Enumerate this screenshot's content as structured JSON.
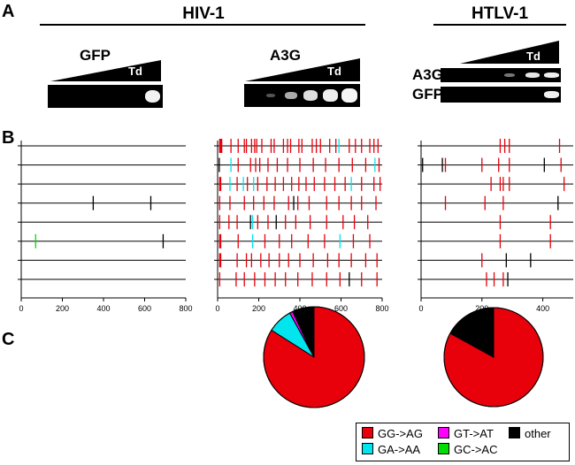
{
  "panels": {
    "a": "A",
    "b": "B",
    "c": "C"
  },
  "groups": {
    "hiv": "HIV-1",
    "htlv": "HTLV-1"
  },
  "gels": {
    "gfp_title": "GFP",
    "a3g_title": "A3G",
    "td": "Td",
    "htlv_a3g_row": "A3G",
    "htlv_gfp_row": "GFP"
  },
  "colors": {
    "gg_ag": "#e8000b",
    "ga_aa": "#00e5ee",
    "gt_at": "#ff00ff",
    "gc_ac": "#00dd00",
    "other": "#000000"
  },
  "chart_data": [
    {
      "type": "mutation-map",
      "name": "HIV-1 GFP",
      "xlim": [
        0,
        800
      ],
      "xticks": [
        "0",
        "200",
        "400",
        "600",
        "800"
      ],
      "rows": [
        [],
        [],
        [],
        [
          {
            "pos": 350,
            "type": "other"
          },
          {
            "pos": 630,
            "type": "other"
          }
        ],
        [],
        [
          {
            "pos": 70,
            "type": "gc_ac"
          },
          {
            "pos": 690,
            "type": "other"
          }
        ],
        [],
        []
      ]
    },
    {
      "type": "mutation-map",
      "name": "HIV-1 A3G",
      "xlim": [
        0,
        800
      ],
      "xticks": [
        "0",
        "200",
        "400",
        "600",
        "800"
      ],
      "rows": [
        [
          {
            "pos": 10,
            "type": "gg_ag"
          },
          {
            "pos": 15,
            "type": "gg_ag"
          },
          {
            "pos": 20,
            "type": "gg_ag"
          },
          {
            "pos": 65,
            "type": "gg_ag"
          },
          {
            "pos": 100,
            "type": "gg_ag"
          },
          {
            "pos": 130,
            "type": "gg_ag"
          },
          {
            "pos": 140,
            "type": "gg_ag"
          },
          {
            "pos": 165,
            "type": "gg_ag"
          },
          {
            "pos": 180,
            "type": "gg_ag"
          },
          {
            "pos": 190,
            "type": "gg_ag"
          },
          {
            "pos": 215,
            "type": "gg_ag"
          },
          {
            "pos": 260,
            "type": "gg_ag"
          },
          {
            "pos": 275,
            "type": "gg_ag"
          },
          {
            "pos": 320,
            "type": "gg_ag"
          },
          {
            "pos": 340,
            "type": "gg_ag"
          },
          {
            "pos": 355,
            "type": "gg_ag"
          },
          {
            "pos": 395,
            "type": "gg_ag"
          },
          {
            "pos": 410,
            "type": "gg_ag"
          },
          {
            "pos": 460,
            "type": "gg_ag"
          },
          {
            "pos": 480,
            "type": "gg_ag"
          },
          {
            "pos": 500,
            "type": "gg_ag"
          },
          {
            "pos": 545,
            "type": "gg_ag"
          },
          {
            "pos": 575,
            "type": "gg_ag"
          },
          {
            "pos": 590,
            "type": "ga_aa"
          },
          {
            "pos": 640,
            "type": "gg_ag"
          },
          {
            "pos": 670,
            "type": "gg_ag"
          },
          {
            "pos": 700,
            "type": "gg_ag"
          },
          {
            "pos": 740,
            "type": "gg_ag"
          },
          {
            "pos": 760,
            "type": "gg_ag"
          },
          {
            "pos": 780,
            "type": "gg_ag"
          }
        ],
        [
          {
            "pos": 8,
            "type": "other"
          },
          {
            "pos": 65,
            "type": "ga_aa"
          },
          {
            "pos": 100,
            "type": "gg_ag"
          },
          {
            "pos": 160,
            "type": "gg_ag"
          },
          {
            "pos": 185,
            "type": "gg_ag"
          },
          {
            "pos": 205,
            "type": "gg_ag"
          },
          {
            "pos": 245,
            "type": "gg_ag"
          },
          {
            "pos": 290,
            "type": "gg_ag"
          },
          {
            "pos": 340,
            "type": "gg_ag"
          },
          {
            "pos": 400,
            "type": "gg_ag"
          },
          {
            "pos": 465,
            "type": "gg_ag"
          },
          {
            "pos": 525,
            "type": "gg_ag"
          },
          {
            "pos": 590,
            "type": "gg_ag"
          },
          {
            "pos": 655,
            "type": "gg_ag"
          },
          {
            "pos": 720,
            "type": "gg_ag"
          },
          {
            "pos": 765,
            "type": "ga_aa"
          },
          {
            "pos": 785,
            "type": "gg_ag"
          }
        ],
        [
          {
            "pos": 10,
            "type": "gg_ag"
          },
          {
            "pos": 15,
            "type": "gg_ag"
          },
          {
            "pos": 60,
            "type": "ga_aa"
          },
          {
            "pos": 95,
            "type": "gg_ag"
          },
          {
            "pos": 125,
            "type": "ga_aa"
          },
          {
            "pos": 145,
            "type": "gg_ag"
          },
          {
            "pos": 175,
            "type": "ga_aa"
          },
          {
            "pos": 195,
            "type": "gg_ag"
          },
          {
            "pos": 240,
            "type": "gg_ag"
          },
          {
            "pos": 280,
            "type": "gg_ag"
          },
          {
            "pos": 320,
            "type": "gg_ag"
          },
          {
            "pos": 360,
            "type": "gg_ag"
          },
          {
            "pos": 395,
            "type": "gg_ag"
          },
          {
            "pos": 430,
            "type": "gg_ag"
          },
          {
            "pos": 470,
            "type": "gg_ag"
          },
          {
            "pos": 520,
            "type": "gg_ag"
          },
          {
            "pos": 570,
            "type": "gg_ag"
          },
          {
            "pos": 620,
            "type": "gg_ag"
          },
          {
            "pos": 650,
            "type": "ga_aa"
          },
          {
            "pos": 700,
            "type": "gg_ag"
          },
          {
            "pos": 760,
            "type": "gg_ag"
          },
          {
            "pos": 790,
            "type": "gg_ag"
          }
        ],
        [
          {
            "pos": 10,
            "type": "gg_ag"
          },
          {
            "pos": 60,
            "type": "gg_ag"
          },
          {
            "pos": 130,
            "type": "gg_ag"
          },
          {
            "pos": 175,
            "type": "gg_ag"
          },
          {
            "pos": 225,
            "type": "gg_ag"
          },
          {
            "pos": 275,
            "type": "gg_ag"
          },
          {
            "pos": 345,
            "type": "gg_ag"
          },
          {
            "pos": 370,
            "type": "other"
          },
          {
            "pos": 390,
            "type": "gg_ag"
          },
          {
            "pos": 445,
            "type": "gg_ag"
          },
          {
            "pos": 530,
            "type": "gg_ag"
          },
          {
            "pos": 590,
            "type": "gg_ag"
          },
          {
            "pos": 650,
            "type": "gg_ag"
          },
          {
            "pos": 700,
            "type": "gg_ag"
          },
          {
            "pos": 770,
            "type": "gg_ag"
          }
        ],
        [
          {
            "pos": 10,
            "type": "gg_ag"
          },
          {
            "pos": 55,
            "type": "gg_ag"
          },
          {
            "pos": 95,
            "type": "gg_ag"
          },
          {
            "pos": 160,
            "type": "other"
          },
          {
            "pos": 170,
            "type": "ga_aa"
          },
          {
            "pos": 195,
            "type": "gg_ag"
          },
          {
            "pos": 245,
            "type": "gg_ag"
          },
          {
            "pos": 285,
            "type": "other"
          },
          {
            "pos": 330,
            "type": "gg_ag"
          },
          {
            "pos": 380,
            "type": "gg_ag"
          },
          {
            "pos": 450,
            "type": "gg_ag"
          },
          {
            "pos": 530,
            "type": "gg_ag"
          },
          {
            "pos": 610,
            "type": "gg_ag"
          },
          {
            "pos": 665,
            "type": "gg_ag"
          },
          {
            "pos": 730,
            "type": "gg_ag"
          }
        ],
        [
          {
            "pos": 10,
            "type": "gg_ag"
          },
          {
            "pos": 15,
            "type": "gg_ag"
          },
          {
            "pos": 100,
            "type": "gg_ag"
          },
          {
            "pos": 170,
            "type": "ga_aa"
          },
          {
            "pos": 230,
            "type": "gg_ag"
          },
          {
            "pos": 300,
            "type": "gg_ag"
          },
          {
            "pos": 360,
            "type": "gg_ag"
          },
          {
            "pos": 440,
            "type": "gg_ag"
          },
          {
            "pos": 520,
            "type": "gg_ag"
          },
          {
            "pos": 595,
            "type": "ga_aa"
          },
          {
            "pos": 660,
            "type": "gg_ag"
          },
          {
            "pos": 740,
            "type": "gg_ag"
          }
        ],
        [
          {
            "pos": 10,
            "type": "gg_ag"
          },
          {
            "pos": 15,
            "type": "gg_ag"
          },
          {
            "pos": 95,
            "type": "gg_ag"
          },
          {
            "pos": 140,
            "type": "gg_ag"
          },
          {
            "pos": 165,
            "type": "gg_ag"
          },
          {
            "pos": 210,
            "type": "gg_ag"
          },
          {
            "pos": 250,
            "type": "gg_ag"
          },
          {
            "pos": 300,
            "type": "gg_ag"
          },
          {
            "pos": 345,
            "type": "gg_ag"
          },
          {
            "pos": 400,
            "type": "gg_ag"
          },
          {
            "pos": 465,
            "type": "gg_ag"
          },
          {
            "pos": 535,
            "type": "gg_ag"
          },
          {
            "pos": 590,
            "type": "gg_ag"
          },
          {
            "pos": 650,
            "type": "gg_ag"
          },
          {
            "pos": 720,
            "type": "gg_ag"
          },
          {
            "pos": 775,
            "type": "gg_ag"
          }
        ],
        [
          {
            "pos": 10,
            "type": "gg_ag"
          },
          {
            "pos": 90,
            "type": "gg_ag"
          },
          {
            "pos": 130,
            "type": "gg_ag"
          },
          {
            "pos": 180,
            "type": "gg_ag"
          },
          {
            "pos": 230,
            "type": "gg_ag"
          },
          {
            "pos": 280,
            "type": "gg_ag"
          },
          {
            "pos": 330,
            "type": "gg_ag"
          },
          {
            "pos": 390,
            "type": "gg_ag"
          },
          {
            "pos": 460,
            "type": "gg_ag"
          },
          {
            "pos": 530,
            "type": "gg_ag"
          },
          {
            "pos": 595,
            "type": "gg_ag"
          },
          {
            "pos": 640,
            "type": "other"
          },
          {
            "pos": 700,
            "type": "gg_ag"
          },
          {
            "pos": 775,
            "type": "gg_ag"
          }
        ]
      ]
    },
    {
      "type": "mutation-map",
      "name": "HTLV-1 A3G",
      "xlim": [
        0,
        500
      ],
      "xticks": [
        "0",
        "200",
        "400"
      ],
      "rows": [
        [
          {
            "pos": 260,
            "type": "gg_ag"
          },
          {
            "pos": 275,
            "type": "gg_ag"
          },
          {
            "pos": 290,
            "type": "gg_ag"
          },
          {
            "pos": 455,
            "type": "gg_ag"
          }
        ],
        [
          {
            "pos": 5,
            "type": "other"
          },
          {
            "pos": 70,
            "type": "other"
          },
          {
            "pos": 80,
            "type": "gg_ag"
          },
          {
            "pos": 200,
            "type": "gg_ag"
          },
          {
            "pos": 255,
            "type": "gg_ag"
          },
          {
            "pos": 290,
            "type": "gg_ag"
          },
          {
            "pos": 405,
            "type": "other"
          },
          {
            "pos": 460,
            "type": "gg_ag"
          }
        ],
        [
          {
            "pos": 230,
            "type": "gg_ag"
          },
          {
            "pos": 260,
            "type": "gg_ag"
          },
          {
            "pos": 270,
            "type": "gg_ag"
          },
          {
            "pos": 290,
            "type": "gg_ag"
          },
          {
            "pos": 470,
            "type": "gg_ag"
          }
        ],
        [
          {
            "pos": 80,
            "type": "gg_ag"
          },
          {
            "pos": 210,
            "type": "gg_ag"
          },
          {
            "pos": 270,
            "type": "gg_ag"
          },
          {
            "pos": 450,
            "type": "other"
          }
        ],
        [
          {
            "pos": 260,
            "type": "gg_ag"
          },
          {
            "pos": 425,
            "type": "gg_ag"
          }
        ],
        [
          {
            "pos": 260,
            "type": "gg_ag"
          },
          {
            "pos": 425,
            "type": "gg_ag"
          }
        ],
        [
          {
            "pos": 200,
            "type": "gg_ag"
          },
          {
            "pos": 280,
            "type": "other"
          },
          {
            "pos": 360,
            "type": "other"
          }
        ],
        [
          {
            "pos": 215,
            "type": "gg_ag"
          },
          {
            "pos": 240,
            "type": "gg_ag"
          },
          {
            "pos": 270,
            "type": "gg_ag"
          },
          {
            "pos": 285,
            "type": "other"
          }
        ]
      ]
    },
    {
      "type": "pie",
      "name": "HIV-1 A3G mutation spectrum",
      "slices": [
        {
          "key": "gg_ag",
          "value": 84
        },
        {
          "key": "ga_aa",
          "value": 8
        },
        {
          "key": "gt_at",
          "value": 1
        },
        {
          "key": "gc_ac",
          "value": 0
        },
        {
          "key": "other",
          "value": 7
        }
      ]
    },
    {
      "type": "pie",
      "name": "HTLV-1 A3G mutation spectrum",
      "slices": [
        {
          "key": "gg_ag",
          "value": 83
        },
        {
          "key": "ga_aa",
          "value": 0
        },
        {
          "key": "gt_at",
          "value": 0
        },
        {
          "key": "gc_ac",
          "value": 0
        },
        {
          "key": "other",
          "value": 17
        }
      ]
    }
  ],
  "legend": {
    "gg_ag": "GG->AG",
    "gt_at": "GT->AT",
    "other": "other",
    "ga_aa": "GA->AA",
    "gc_ac": "GC->AC"
  }
}
